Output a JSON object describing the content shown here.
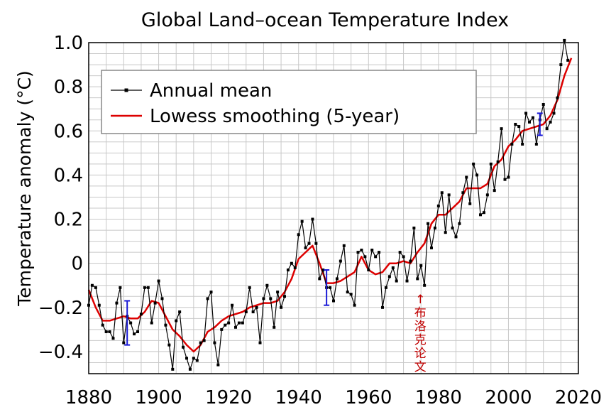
{
  "chart_data": {
    "type": "line",
    "title": "Global Land–ocean Temperature Index",
    "xlabel": "",
    "ylabel": "Temperature anomaly (°C)",
    "xlim": [
      1880,
      2020
    ],
    "ylim": [
      -0.5,
      1.0
    ],
    "x_ticks": [
      1880,
      1900,
      1920,
      1940,
      1960,
      1980,
      2000,
      2020
    ],
    "y_ticks": [
      -0.4,
      -0.2,
      0,
      0.2,
      0.4,
      0.6,
      0.8,
      1.0
    ],
    "y_tick_labels": [
      "−0.4",
      "−0.2",
      "0",
      "0.2",
      "0.4",
      "0.6",
      "0.8",
      "1.0"
    ],
    "grid": true,
    "legend_position": "top-left",
    "series": [
      {
        "name": "Annual mean",
        "color": "#000000",
        "marker": "square",
        "x": [
          1880,
          1881,
          1882,
          1883,
          1884,
          1885,
          1886,
          1887,
          1888,
          1889,
          1890,
          1891,
          1892,
          1893,
          1894,
          1895,
          1896,
          1897,
          1898,
          1899,
          1900,
          1901,
          1902,
          1903,
          1904,
          1905,
          1906,
          1907,
          1908,
          1909,
          1910,
          1911,
          1912,
          1913,
          1914,
          1915,
          1916,
          1917,
          1918,
          1919,
          1920,
          1921,
          1922,
          1923,
          1924,
          1925,
          1926,
          1927,
          1928,
          1929,
          1930,
          1931,
          1932,
          1933,
          1934,
          1935,
          1936,
          1937,
          1938,
          1939,
          1940,
          1941,
          1942,
          1943,
          1944,
          1945,
          1946,
          1947,
          1948,
          1949,
          1950,
          1951,
          1952,
          1953,
          1954,
          1955,
          1956,
          1957,
          1958,
          1959,
          1960,
          1961,
          1962,
          1963,
          1964,
          1965,
          1966,
          1967,
          1968,
          1969,
          1970,
          1971,
          1972,
          1973,
          1974,
          1975,
          1976,
          1977,
          1978,
          1979,
          1980,
          1981,
          1982,
          1983,
          1984,
          1985,
          1986,
          1987,
          1988,
          1989,
          1990,
          1991,
          1992,
          1993,
          1994,
          1995,
          1996,
          1997,
          1998,
          1999,
          2000,
          2001,
          2002,
          2003,
          2004,
          2005,
          2006,
          2007,
          2008,
          2009,
          2010,
          2011,
          2012,
          2013,
          2014,
          2015,
          2016,
          2017
        ],
        "y": [
          -0.19,
          -0.1,
          -0.11,
          -0.19,
          -0.28,
          -0.31,
          -0.31,
          -0.34,
          -0.18,
          -0.11,
          -0.36,
          -0.24,
          -0.27,
          -0.32,
          -0.31,
          -0.23,
          -0.11,
          -0.11,
          -0.27,
          -0.18,
          -0.08,
          -0.16,
          -0.28,
          -0.37,
          -0.48,
          -0.26,
          -0.22,
          -0.38,
          -0.43,
          -0.48,
          -0.43,
          -0.44,
          -0.36,
          -0.35,
          -0.16,
          -0.13,
          -0.36,
          -0.46,
          -0.3,
          -0.28,
          -0.27,
          -0.19,
          -0.29,
          -0.27,
          -0.27,
          -0.22,
          -0.11,
          -0.22,
          -0.2,
          -0.36,
          -0.16,
          -0.1,
          -0.16,
          -0.29,
          -0.13,
          -0.2,
          -0.15,
          -0.03,
          -0.0,
          -0.02,
          0.13,
          0.19,
          0.07,
          0.09,
          0.2,
          0.09,
          -0.07,
          -0.03,
          -0.11,
          -0.11,
          -0.17,
          -0.07,
          0.01,
          0.08,
          -0.13,
          -0.14,
          -0.19,
          0.05,
          0.06,
          0.03,
          -0.03,
          0.06,
          0.03,
          0.05,
          -0.2,
          -0.11,
          -0.06,
          -0.02,
          -0.08,
          0.05,
          0.03,
          -0.08,
          0.01,
          0.16,
          -0.07,
          -0.01,
          -0.1,
          0.18,
          0.07,
          0.16,
          0.26,
          0.32,
          0.14,
          0.31,
          0.16,
          0.12,
          0.18,
          0.32,
          0.39,
          0.27,
          0.45,
          0.4,
          0.22,
          0.23,
          0.31,
          0.45,
          0.33,
          0.46,
          0.61,
          0.38,
          0.39,
          0.54,
          0.63,
          0.62,
          0.54,
          0.68,
          0.64,
          0.66,
          0.54,
          0.65,
          0.72,
          0.61,
          0.64,
          0.68,
          0.75,
          0.9,
          1.01,
          0.92
        ]
      },
      {
        "name": "Lowess smoothing (5-year)",
        "color": "#dd0000",
        "x": [
          1880,
          1882,
          1884,
          1886,
          1888,
          1890,
          1892,
          1894,
          1896,
          1898,
          1900,
          1902,
          1904,
          1906,
          1908,
          1910,
          1912,
          1914,
          1916,
          1918,
          1920,
          1922,
          1924,
          1926,
          1928,
          1930,
          1932,
          1934,
          1936,
          1938,
          1940,
          1942,
          1944,
          1946,
          1948,
          1950,
          1952,
          1954,
          1956,
          1958,
          1960,
          1962,
          1964,
          1966,
          1968,
          1970,
          1972,
          1974,
          1976,
          1978,
          1980,
          1982,
          1984,
          1986,
          1988,
          1990,
          1992,
          1994,
          1996,
          1998,
          2000,
          2002,
          2004,
          2006,
          2008,
          2010,
          2012,
          2014,
          2016,
          2018
        ],
        "y": [
          -0.12,
          -0.2,
          -0.26,
          -0.26,
          -0.25,
          -0.24,
          -0.25,
          -0.25,
          -0.22,
          -0.17,
          -0.18,
          -0.24,
          -0.3,
          -0.33,
          -0.37,
          -0.4,
          -0.37,
          -0.31,
          -0.29,
          -0.26,
          -0.24,
          -0.23,
          -0.22,
          -0.2,
          -0.19,
          -0.18,
          -0.18,
          -0.17,
          -0.13,
          -0.07,
          0.02,
          0.05,
          0.08,
          0.0,
          -0.09,
          -0.09,
          -0.08,
          -0.06,
          -0.04,
          0.03,
          -0.03,
          -0.05,
          -0.04,
          0.0,
          0.0,
          0.01,
          0.0,
          0.05,
          0.09,
          0.18,
          0.22,
          0.22,
          0.25,
          0.28,
          0.34,
          0.34,
          0.34,
          0.36,
          0.44,
          0.47,
          0.53,
          0.56,
          0.6,
          0.61,
          0.62,
          0.63,
          0.67,
          0.74,
          0.85,
          0.93
        ]
      }
    ],
    "error_bars": [
      {
        "x": 1891,
        "low": -0.37,
        "high": -0.17
      },
      {
        "x": 1948,
        "low": -0.19,
        "high": -0.03
      },
      {
        "x": 2009,
        "low": 0.58,
        "high": 0.68
      }
    ],
    "annotation": {
      "arrow": "↑",
      "chars": [
        "布",
        "洛",
        "克",
        "论",
        "文"
      ],
      "x": 1975
    }
  }
}
